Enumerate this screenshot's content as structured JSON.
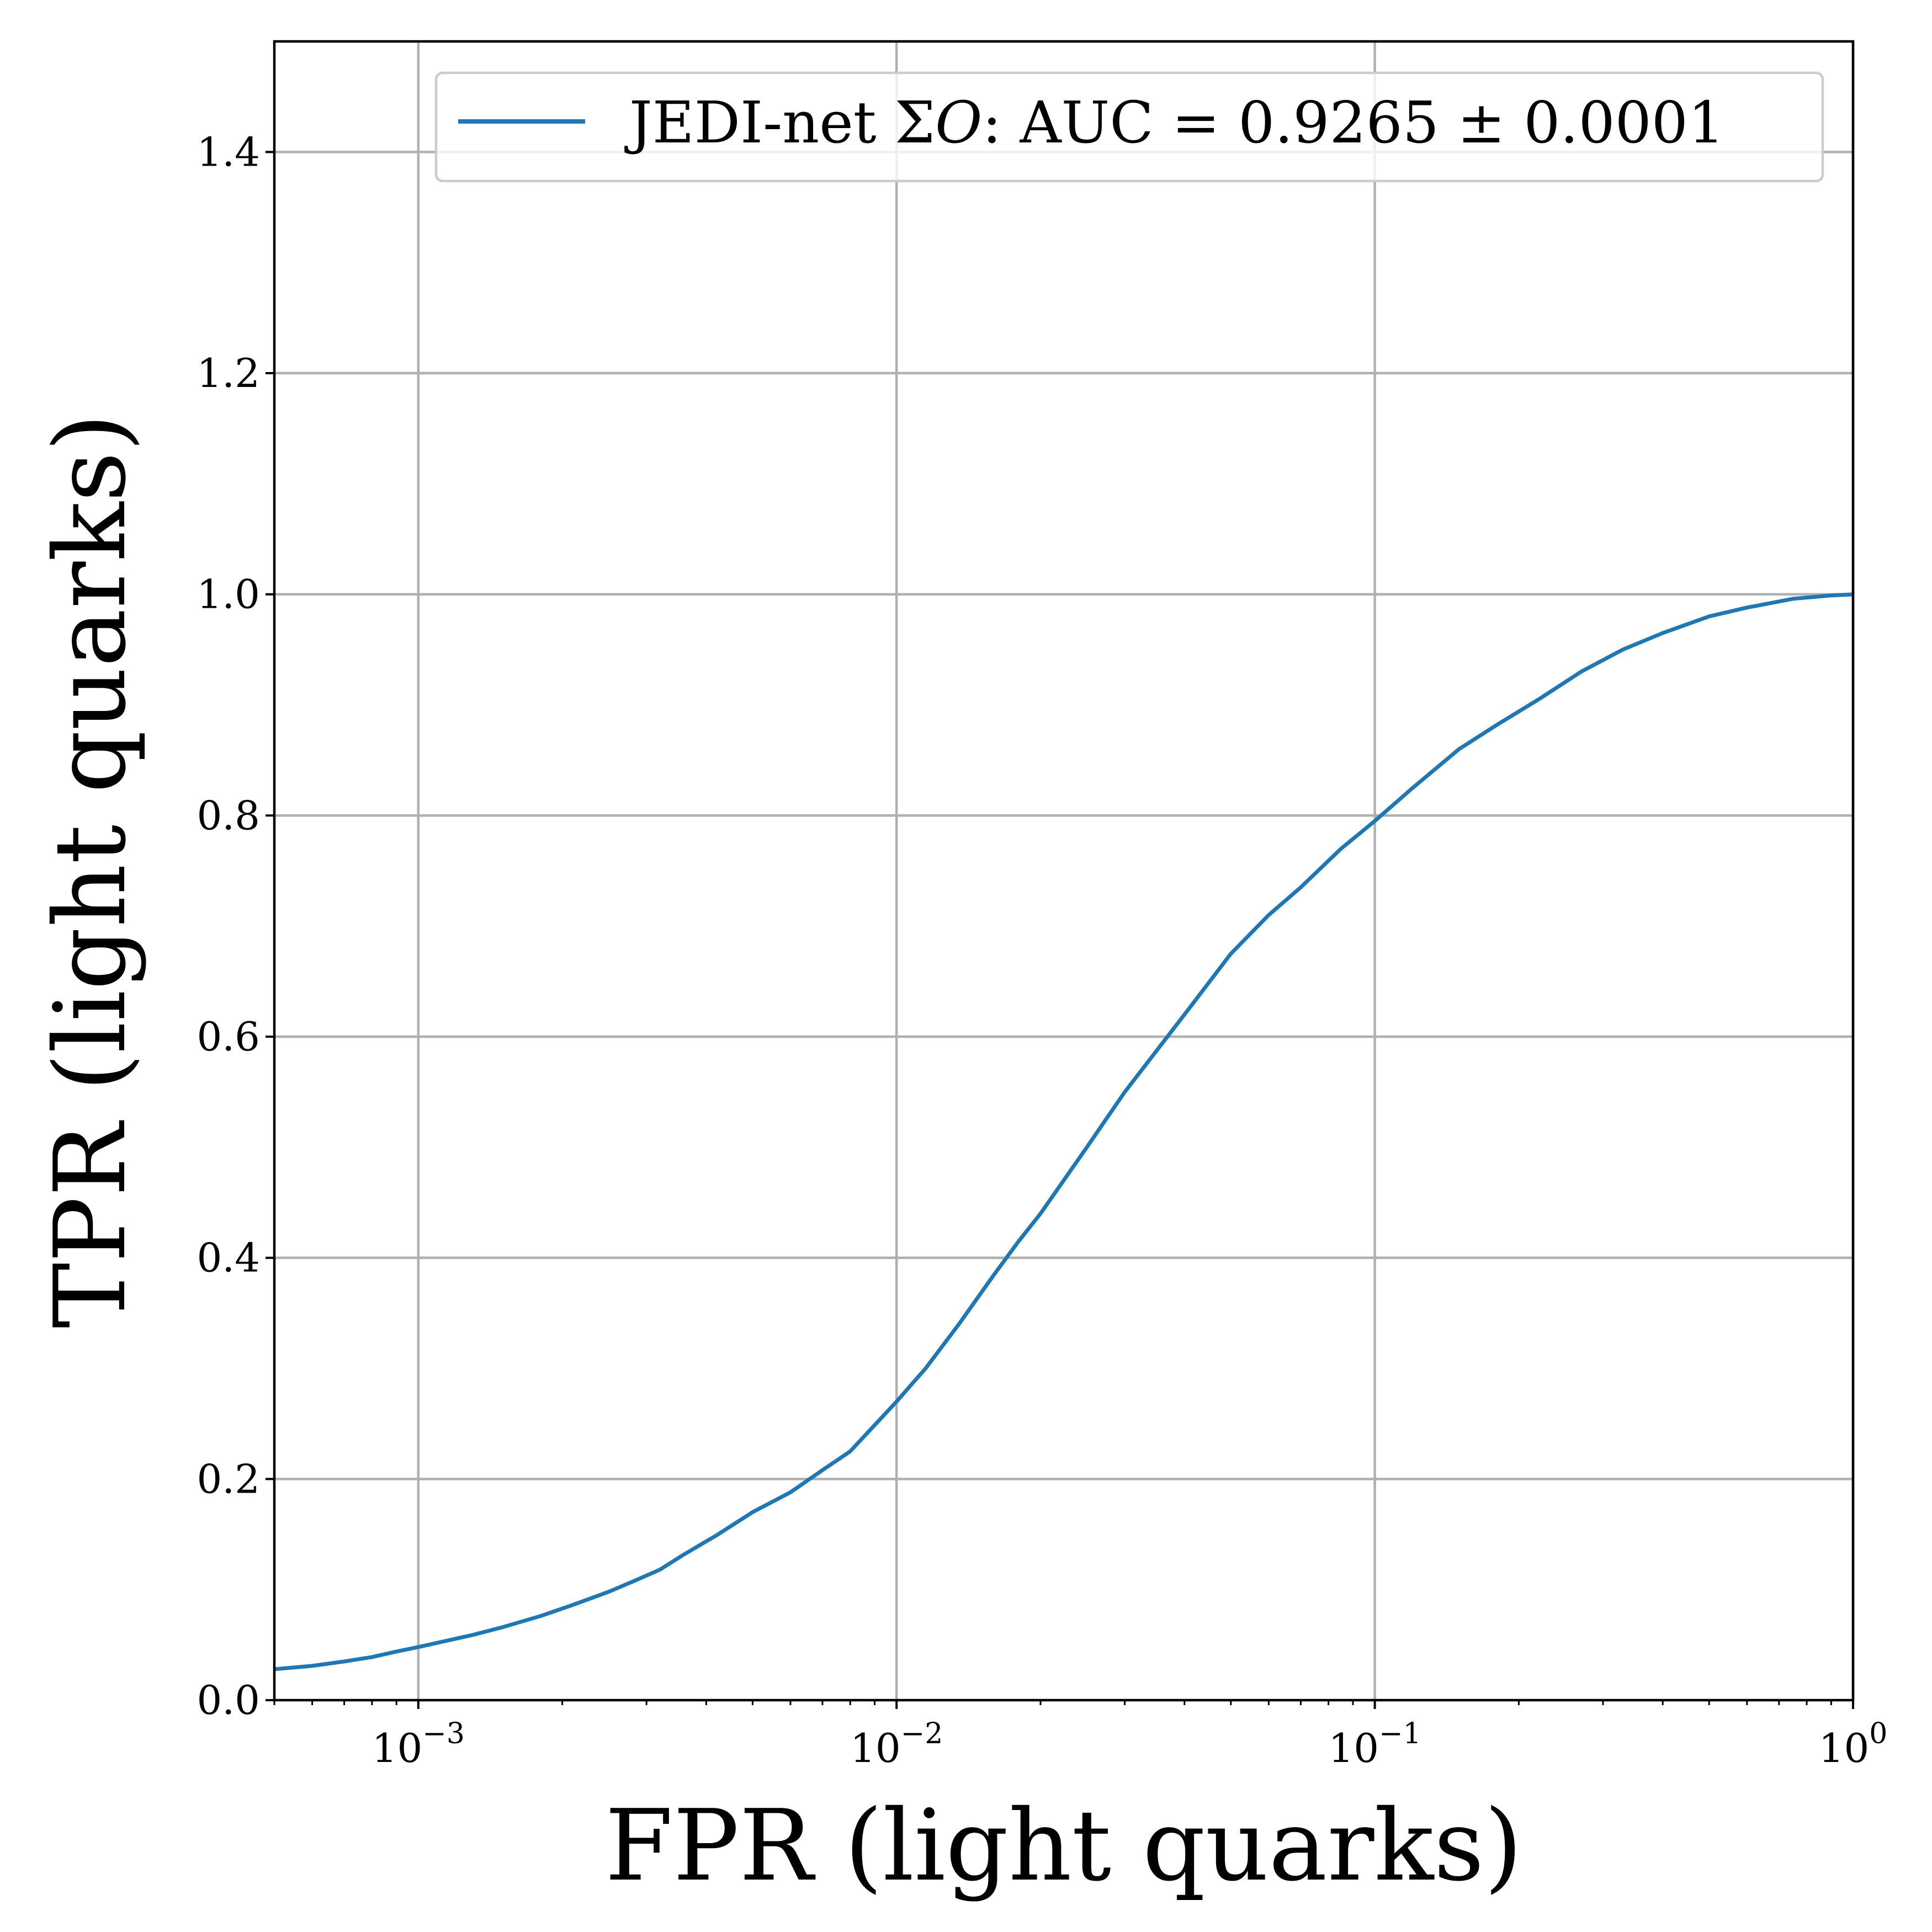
{
  "chart_data": {
    "type": "line",
    "title": "",
    "xlabel": "FPR (light quarks)",
    "ylabel": "TPR (light quarks)",
    "xscale": "log",
    "xlim": [
      0.0005,
      1.0
    ],
    "ylim": [
      0.0,
      1.5
    ],
    "grid": true,
    "legend_position": "top-right",
    "x_ticks": [
      {
        "value": 0.001,
        "base": "10",
        "exp": "−3"
      },
      {
        "value": 0.01,
        "base": "10",
        "exp": "−2"
      },
      {
        "value": 0.1,
        "base": "10",
        "exp": "−1"
      },
      {
        "value": 1.0,
        "base": "10",
        "exp": "0"
      }
    ],
    "y_ticks": [
      {
        "value": 0.0,
        "label": "0.0"
      },
      {
        "value": 0.2,
        "label": "0.2"
      },
      {
        "value": 0.4,
        "label": "0.4"
      },
      {
        "value": 0.6,
        "label": "0.6"
      },
      {
        "value": 0.8,
        "label": "0.8"
      },
      {
        "value": 1.0,
        "label": "1.0"
      },
      {
        "value": 1.2,
        "label": "1.2"
      },
      {
        "value": 1.4,
        "label": "1.4"
      }
    ],
    "series": [
      {
        "name": "JEDI-net ΣO: AUC = 0.9265 ± 0.0001",
        "legend_prefix": "JEDI-net Σ",
        "legend_italic": "O",
        "legend_suffix": ": AUC = 0.9265 ± 0.0001",
        "color": "#1f77b4",
        "x": [
          0.0005,
          0.0006,
          0.0007,
          0.0008,
          0.0009,
          0.001,
          0.0011,
          0.0013,
          0.0015,
          0.0018,
          0.0021,
          0.0025,
          0.0028,
          0.0032,
          0.0036,
          0.0042,
          0.005,
          0.006,
          0.007,
          0.008,
          0.01,
          0.0115,
          0.0135,
          0.016,
          0.018,
          0.02,
          0.025,
          0.03,
          0.04,
          0.05,
          0.06,
          0.07,
          0.085,
          0.1,
          0.12,
          0.15,
          0.18,
          0.22,
          0.27,
          0.33,
          0.4,
          0.5,
          0.6,
          0.75,
          0.9,
          1.0
        ],
        "y": [
          0.028,
          0.031,
          0.035,
          0.039,
          0.044,
          0.048,
          0.052,
          0.059,
          0.066,
          0.076,
          0.086,
          0.098,
          0.107,
          0.118,
          0.132,
          0.149,
          0.17,
          0.188,
          0.208,
          0.225,
          0.27,
          0.3,
          0.34,
          0.385,
          0.415,
          0.44,
          0.5,
          0.55,
          0.62,
          0.675,
          0.71,
          0.735,
          0.77,
          0.795,
          0.825,
          0.86,
          0.882,
          0.905,
          0.93,
          0.95,
          0.965,
          0.98,
          0.988,
          0.996,
          0.999,
          1.0
        ]
      }
    ]
  }
}
